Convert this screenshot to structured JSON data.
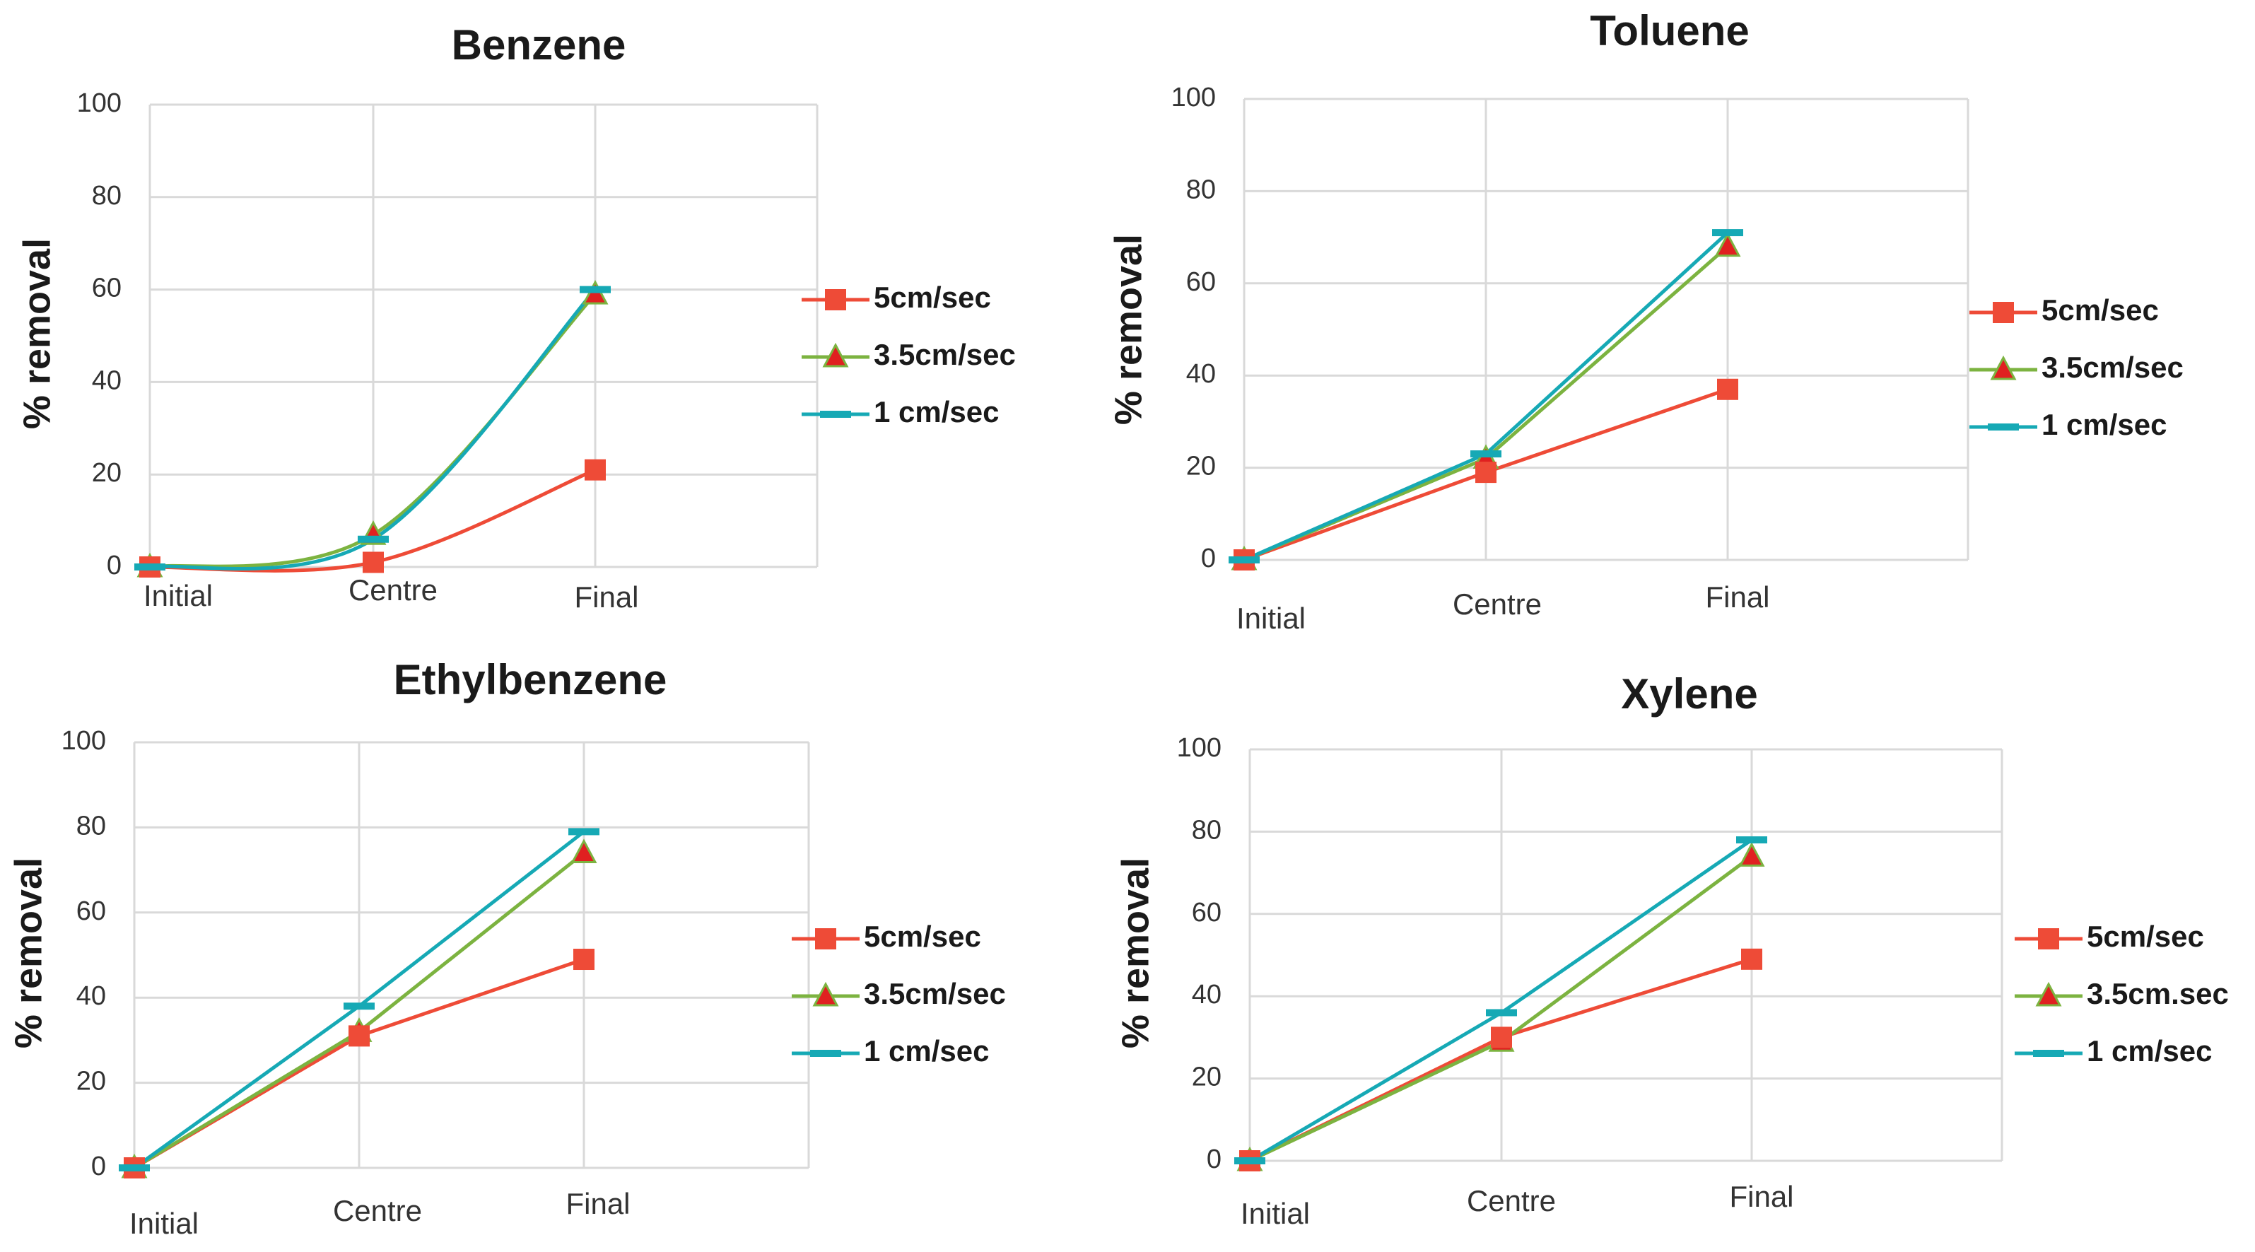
{
  "colors": {
    "series_5": "#ee4b37",
    "series_35": "#7cb340",
    "series_35_marker": "#e02020",
    "series_1": "#16a9b5",
    "grid": "#d9d9d9",
    "text": "#1a1a1a",
    "axis_text": "#333333"
  },
  "chart_data": [
    {
      "type": "line",
      "title": "Benzene",
      "ylabel": "% removal",
      "xlabel": "",
      "ylim": [
        0,
        100
      ],
      "yticks": [
        "0",
        "20",
        "40",
        "60",
        "80",
        "100"
      ],
      "categories": [
        "Initial",
        "Centre",
        "Final"
      ],
      "legend_position": "right",
      "series": [
        {
          "name": "5cm/sec",
          "marker": "square",
          "values": [
            0,
            1,
            21
          ]
        },
        {
          "name": "3.5cm/sec",
          "marker": "triangle",
          "values": [
            0,
            7,
            59
          ]
        },
        {
          "name": "1 cm/sec",
          "marker": "dash",
          "values": [
            0,
            6,
            60
          ]
        }
      ]
    },
    {
      "type": "line",
      "title": "Toluene",
      "ylabel": "% removal",
      "xlabel": "",
      "ylim": [
        0,
        100
      ],
      "yticks": [
        "0",
        "20",
        "40",
        "60",
        "80",
        "100"
      ],
      "categories": [
        "Initial",
        "Centre",
        "Final"
      ],
      "legend_position": "right",
      "series": [
        {
          "name": "5cm/sec",
          "marker": "square",
          "values": [
            0,
            19,
            37
          ]
        },
        {
          "name": "3.5cm/sec",
          "marker": "triangle",
          "values": [
            0,
            22,
            68
          ]
        },
        {
          "name": "1 cm/sec",
          "marker": "dash",
          "values": [
            0,
            23,
            71
          ]
        }
      ]
    },
    {
      "type": "line",
      "title": "Ethylbenzene",
      "ylabel": "% removal",
      "xlabel": "",
      "ylim": [
        0,
        100
      ],
      "yticks": [
        "0",
        "20",
        "40",
        "60",
        "80",
        "100"
      ],
      "categories": [
        "Initial",
        "Centre",
        "Final"
      ],
      "legend_position": "right",
      "series": [
        {
          "name": "5cm/sec",
          "marker": "square",
          "values": [
            0,
            31,
            49
          ]
        },
        {
          "name": "3.5cm/sec",
          "marker": "triangle",
          "values": [
            0,
            32,
            74
          ]
        },
        {
          "name": "1 cm/sec",
          "marker": "dash",
          "values": [
            0,
            38,
            79
          ]
        }
      ]
    },
    {
      "type": "line",
      "title": "Xylene",
      "ylabel": "% removal",
      "xlabel": "",
      "ylim": [
        0,
        100
      ],
      "yticks": [
        "0",
        "20",
        "40",
        "60",
        "80",
        "100"
      ],
      "categories": [
        "Initial",
        "Centre",
        "Final"
      ],
      "legend_position": "right",
      "series": [
        {
          "name": "5cm/sec",
          "marker": "square",
          "values": [
            0,
            30,
            49
          ]
        },
        {
          "name": "3.5cm.sec",
          "marker": "triangle",
          "values": [
            0,
            29,
            74
          ]
        },
        {
          "name": "1 cm/sec",
          "marker": "dash",
          "values": [
            0,
            36,
            78
          ]
        }
      ]
    }
  ]
}
